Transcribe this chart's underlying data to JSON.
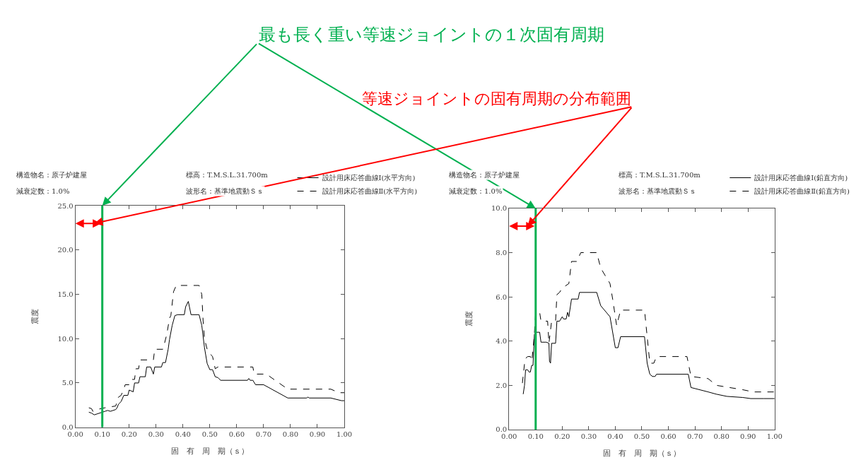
{
  "chart_data": [
    {
      "type": "line",
      "xlabel": "固　有　周　期（ｓ）",
      "ylabel": "震度",
      "legend": "top right",
      "marker": "none",
      "annotations": [
        "構造物名：原子炉建屋",
        "減衰定数：1.0%",
        "標高：T.M.S.L.31.700m",
        "波形名：基準地震動Ｓｓ",
        {
          "text": "最も長く重い等速ジョイントの１次固有周期",
          "x": 0.1,
          "y": 25
        },
        "等速ジョイントの固有周期の分布範囲"
      ],
      "xlim": [
        0,
        1
      ],
      "xticks": [
        {
          "value": 0,
          "label": "0.00"
        },
        {
          "value": 0.1,
          "label": "0.10"
        },
        {
          "value": 0.2,
          "label": "0.20"
        },
        {
          "value": 0.3,
          "label": "0.30"
        },
        {
          "value": 0.4,
          "label": "0.40"
        },
        {
          "value": 0.5,
          "label": "0.50"
        },
        {
          "value": 0.6,
          "label": "0.60"
        },
        {
          "value": 0.7,
          "label": "0.70"
        },
        {
          "value": 0.8,
          "label": "0.80"
        },
        {
          "value": 0.9,
          "label": "0.90"
        },
        {
          "value": 1,
          "label": "1.00"
        }
      ],
      "ylim": [
        0,
        25
      ],
      "yticks": [
        {
          "value": 0,
          "label": "0.0"
        },
        {
          "value": 5,
          "label": "5.0"
        },
        {
          "value": 10,
          "label": "10.0"
        },
        {
          "value": 15,
          "label": "15.0"
        },
        {
          "value": 20,
          "label": "20.0"
        },
        {
          "value": 25,
          "label": "25.0"
        }
      ],
      "ref_lines": [
        {
          "axis": "x",
          "value": 0.1,
          "color": "#00b050"
        }
      ],
      "series": [
        {
          "name": "設計用床応答曲線Ⅰ(水平方向)",
          "color": "#000000",
          "line_style": "solid",
          "x": [
            0.05,
            0.06,
            0.07,
            0.08,
            0.1,
            0.11,
            0.12,
            0.13,
            0.14,
            0.15,
            0.155,
            0.16,
            0.17,
            0.18,
            0.195,
            0.2,
            0.215,
            0.22,
            0.235,
            0.24,
            0.26,
            0.265,
            0.28,
            0.29,
            0.295,
            0.32,
            0.325,
            0.335,
            0.345,
            0.35,
            0.36,
            0.37,
            0.38,
            0.405,
            0.41,
            0.42,
            0.43,
            0.46,
            0.47,
            0.48,
            0.49,
            0.5,
            0.51,
            0.52,
            0.53,
            0.54,
            0.64,
            0.645,
            0.65,
            0.66,
            0.67,
            0.7,
            0.79,
            0.86,
            0.865,
            0.87,
            0.95,
            0.99,
            1.0
          ],
          "values": [
            1.7,
            1.6,
            1.4,
            1.5,
            1.7,
            1.8,
            1.9,
            1.8,
            1.9,
            2.0,
            2.2,
            2.6,
            2.9,
            3.6,
            3.6,
            4.2,
            4.0,
            5.0,
            5.0,
            5.7,
            5.7,
            6.8,
            6.8,
            6.0,
            6.8,
            6.8,
            7.3,
            7.3,
            8.8,
            9.9,
            11.5,
            12.6,
            12.7,
            12.7,
            13.6,
            14.2,
            12.7,
            12.7,
            11.5,
            9.0,
            7.2,
            6.5,
            6.5,
            5.7,
            5.6,
            5.3,
            5.3,
            5.5,
            5.3,
            5.3,
            4.8,
            4.8,
            3.3,
            3.3,
            3.4,
            3.3,
            3.3,
            3.0,
            3.0
          ]
        },
        {
          "name": "設計用床応答曲線Ⅱ(水平方向)",
          "color": "#000000",
          "line_style": "dashed",
          "x": [
            0.05,
            0.06,
            0.065,
            0.08,
            0.11,
            0.13,
            0.15,
            0.16,
            0.17,
            0.18,
            0.185,
            0.2,
            0.21,
            0.22,
            0.225,
            0.235,
            0.24,
            0.29,
            0.295,
            0.325,
            0.33,
            0.34,
            0.35,
            0.355,
            0.365,
            0.375,
            0.46,
            0.47,
            0.475,
            0.48,
            0.49,
            0.5,
            0.51,
            0.52,
            0.53,
            0.66,
            0.665,
            0.71,
            0.79,
            0.95,
            0.98,
            1.0
          ],
          "values": [
            2.2,
            2.1,
            1.8,
            2.0,
            2.2,
            2.3,
            2.4,
            3.4,
            3.6,
            4.3,
            4.8,
            4.8,
            5.4,
            5.4,
            6.6,
            6.6,
            7.6,
            7.6,
            8.8,
            8.8,
            9.3,
            10.5,
            12.3,
            12.6,
            15.3,
            16.0,
            16.0,
            15.0,
            12.0,
            10.0,
            8.8,
            8.3,
            8.0,
            6.6,
            6.8,
            6.8,
            6.0,
            6.0,
            4.3,
            4.3,
            3.9,
            3.9
          ]
        }
      ]
    },
    {
      "type": "line",
      "xlabel": "固　有　周　期（ｓ）",
      "ylabel": "震度",
      "legend": "top right",
      "marker": "none",
      "annotations": [
        "構造物名：原子炉建屋",
        "減衰定数：1.0%",
        "標高：T.M.S.L.31.700m",
        "波形名：基準地震動Ｓｓ"
      ],
      "xlim": [
        0,
        1
      ],
      "xticks": [
        {
          "value": 0,
          "label": "0.00"
        },
        {
          "value": 0.1,
          "label": "0.10"
        },
        {
          "value": 0.2,
          "label": "0.20"
        },
        {
          "value": 0.3,
          "label": "0.30"
        },
        {
          "value": 0.4,
          "label": "0.40"
        },
        {
          "value": 0.5,
          "label": "0.50"
        },
        {
          "value": 0.6,
          "label": "0.60"
        },
        {
          "value": 0.7,
          "label": "0.70"
        },
        {
          "value": 0.8,
          "label": "0.80"
        },
        {
          "value": 0.9,
          "label": "0.90"
        },
        {
          "value": 1,
          "label": "1.00"
        }
      ],
      "ylim": [
        0,
        10
      ],
      "yticks": [
        {
          "value": 0,
          "label": "0.0"
        },
        {
          "value": 2,
          "label": "2.0"
        },
        {
          "value": 4,
          "label": "4.0"
        },
        {
          "value": 6,
          "label": "6.0"
        },
        {
          "value": 8,
          "label": "8.0"
        },
        {
          "value": 10,
          "label": "10.0"
        }
      ],
      "ref_lines": [
        {
          "axis": "x",
          "value": 0.1,
          "color": "#00b050"
        }
      ],
      "series": [
        {
          "name": "設計用床応答曲線Ⅰ(鉛直方向)",
          "color": "#000000",
          "line_style": "solid",
          "x": [
            0.053,
            0.058,
            0.062,
            0.07,
            0.075,
            0.08,
            0.085,
            0.09,
            0.095,
            0.1,
            0.115,
            0.12,
            0.14,
            0.15,
            0.152,
            0.156,
            0.16,
            0.175,
            0.18,
            0.19,
            0.2,
            0.205,
            0.215,
            0.22,
            0.225,
            0.235,
            0.26,
            0.265,
            0.33,
            0.345,
            0.38,
            0.4,
            0.41,
            0.42,
            0.51,
            0.52,
            0.53,
            0.54,
            0.55,
            0.555,
            0.675,
            0.685,
            0.75,
            0.78,
            0.82,
            0.88,
            0.91,
            0.96,
            1.0
          ],
          "values": [
            1.6,
            2.0,
            2.7,
            2.7,
            2.6,
            2.6,
            2.9,
            2.9,
            4.3,
            4.4,
            4.4,
            3.95,
            3.95,
            3.9,
            3.1,
            3.0,
            3.9,
            3.9,
            4.9,
            4.9,
            5.1,
            5.0,
            5.0,
            5.3,
            5.1,
            5.9,
            5.9,
            6.2,
            6.2,
            5.6,
            5.1,
            3.7,
            3.7,
            4.2,
            4.2,
            3.0,
            2.5,
            2.4,
            2.4,
            2.5,
            2.5,
            1.9,
            1.7,
            1.6,
            1.5,
            1.45,
            1.4,
            1.4,
            1.4
          ]
        },
        {
          "name": "設計用床応答曲線Ⅱ(鉛直方向)",
          "color": "#000000",
          "line_style": "dashed",
          "x": [
            0.05,
            0.06,
            0.07,
            0.08,
            0.085,
            0.09,
            0.095,
            0.1,
            0.115,
            0.12,
            0.145,
            0.15,
            0.16,
            0.175,
            0.18,
            0.19,
            0.2,
            0.225,
            0.235,
            0.255,
            0.27,
            0.33,
            0.345,
            0.38,
            0.39,
            0.405,
            0.42,
            0.51,
            0.53,
            0.545,
            0.555,
            0.67,
            0.685,
            0.75,
            0.78,
            0.88,
            0.92,
            1.0
          ],
          "values": [
            2.1,
            3.2,
            3.3,
            3.3,
            3.1,
            3.6,
            4.3,
            5.3,
            5.3,
            4.9,
            4.9,
            3.9,
            4.9,
            4.9,
            6.1,
            6.2,
            6.4,
            6.6,
            7.6,
            7.6,
            8.0,
            8.0,
            7.3,
            6.6,
            5.9,
            4.7,
            5.4,
            5.4,
            3.0,
            3.0,
            3.3,
            3.3,
            2.4,
            2.3,
            2.0,
            1.8,
            1.7,
            1.7
          ]
        }
      ]
    }
  ]
}
